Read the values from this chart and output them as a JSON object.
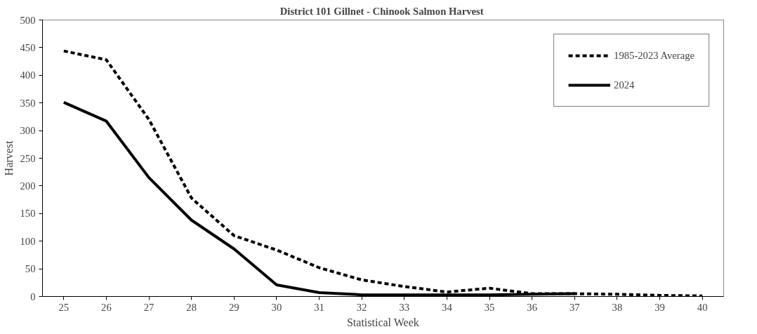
{
  "chart_data": {
    "type": "line",
    "title": "District 101 Gillnet - Chinook  Salmon Harvest",
    "xlabel": "Statistical Week",
    "ylabel": "Harvest",
    "categories": [
      "25",
      "26",
      "27",
      "28",
      "29",
      "30",
      "31",
      "32",
      "33",
      "34",
      "35",
      "36",
      "37",
      "38",
      "39",
      "40"
    ],
    "series": [
      {
        "name": "1985-2023 Average",
        "color": "#000000",
        "line_style": "dashed",
        "values": [
          444,
          428,
          320,
          178,
          110,
          84,
          52,
          30,
          18,
          8,
          15,
          5,
          5,
          4,
          2,
          1
        ]
      },
      {
        "name": "2024",
        "color": "#000000",
        "line_style": "solid",
        "values": [
          351,
          317,
          215,
          138,
          86,
          21,
          7,
          3,
          3,
          3,
          3,
          4,
          5,
          null,
          null,
          null
        ]
      }
    ],
    "ylim": [
      0,
      500
    ],
    "yticks": [
      0,
      50,
      100,
      150,
      200,
      250,
      300,
      350,
      400,
      450,
      500
    ],
    "grid": false,
    "legend": "top right",
    "marker": "none"
  }
}
